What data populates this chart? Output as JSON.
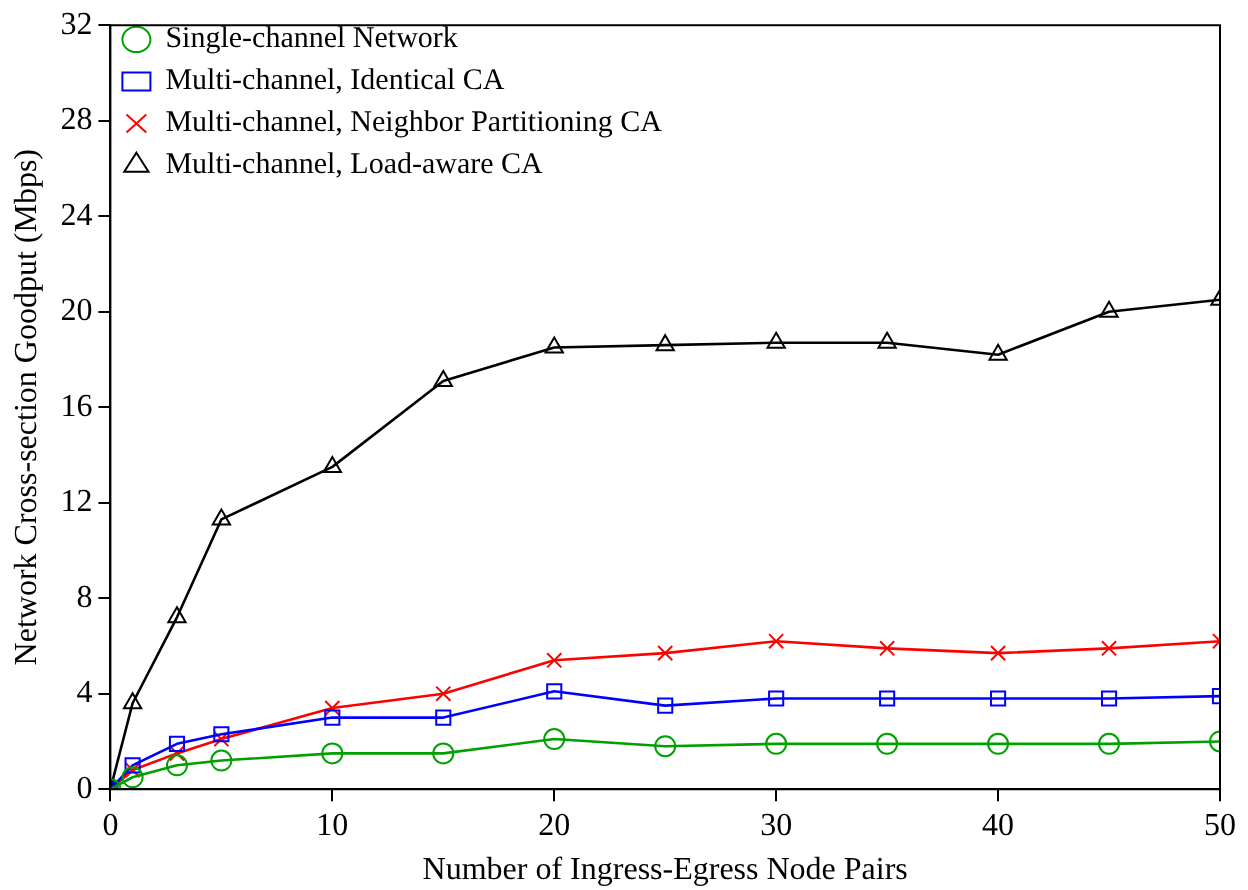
{
  "chart_data": {
    "type": "line",
    "xlabel": "Number of Ingress-Egress Node Pairs",
    "ylabel": "Network Cross-section Goodput (Mbps)",
    "x": [
      0,
      1,
      3,
      5,
      10,
      15,
      20,
      25,
      30,
      35,
      40,
      45,
      50
    ],
    "series": [
      {
        "name": "Single-channel Network",
        "color": "#00a000",
        "marker": "circle",
        "values": [
          0,
          0.5,
          1.0,
          1.2,
          1.5,
          1.5,
          2.1,
          1.8,
          1.9,
          1.9,
          1.9,
          1.9,
          2.0
        ]
      },
      {
        "name": "Multi-channel, Identical CA",
        "color": "#0000ff",
        "marker": "square",
        "values": [
          0,
          1.0,
          1.9,
          2.3,
          3.0,
          3.0,
          4.1,
          3.5,
          3.8,
          3.8,
          3.8,
          3.8,
          3.9
        ]
      },
      {
        "name": "Multi-channel, Neighbor Partitioning CA",
        "color": "#ff0000",
        "marker": "cross",
        "values": [
          0,
          0.8,
          1.5,
          2.1,
          3.4,
          4.0,
          5.4,
          5.7,
          6.2,
          5.9,
          5.7,
          5.9,
          6.2
        ]
      },
      {
        "name": "Multi-channel, Load-aware CA",
        "color": "#000000",
        "marker": "triangle",
        "values": [
          0,
          3.6,
          7.2,
          11.3,
          13.5,
          17.1,
          18.5,
          18.6,
          18.7,
          18.7,
          18.2,
          20.0,
          20.5
        ]
      }
    ],
    "xlim": [
      0,
      50
    ],
    "xticks": [
      0,
      10,
      20,
      30,
      40,
      50
    ],
    "ylim": [
      0,
      32
    ],
    "yticks": [
      0,
      4,
      8,
      12,
      16,
      20,
      24,
      28,
      32
    ],
    "grid": false,
    "legend": "top left",
    "line_style": "solid"
  }
}
